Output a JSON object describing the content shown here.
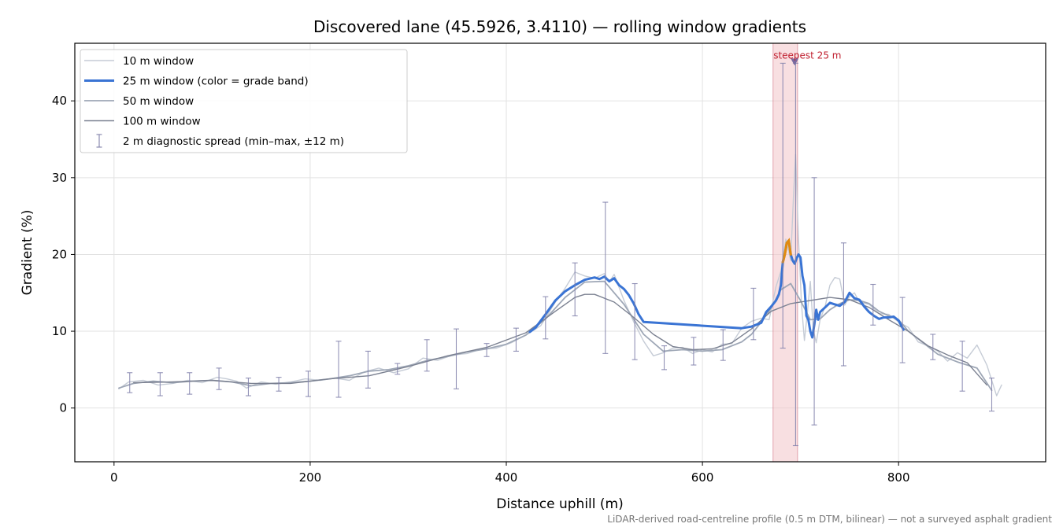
{
  "chart_data": {
    "type": "line",
    "title": "Discovered lane (45.5926, 3.4110) — rolling window gradients",
    "xlabel": "Distance uphill (m)",
    "ylabel": "Gradient (%)",
    "xlim": [
      -40,
      950
    ],
    "ylim": [
      -7,
      47.5
    ],
    "xticks": [
      0,
      200,
      400,
      600,
      800
    ],
    "yticks": [
      0,
      10,
      20,
      30,
      40
    ],
    "grid": true,
    "legend_position": "top-left",
    "footnote": "LiDAR-derived road-centreline profile (0.5 m DTM, bilinear) — not a surveyed asphalt gradient",
    "highlight": {
      "x_range": [
        672,
        697
      ],
      "label": "steepest 25 m",
      "marker": [
        694,
        45
      ],
      "color": "#e8a0a8"
    },
    "series": [
      {
        "name": "10 m window",
        "color": "#c6ccd6",
        "x": [
          5,
          15,
          30,
          45,
          60,
          75,
          90,
          105,
          115,
          125,
          135,
          150,
          165,
          180,
          195,
          210,
          225,
          240,
          255,
          270,
          285,
          300,
          315,
          330,
          345,
          360,
          375,
          390,
          405,
          420,
          435,
          450,
          460,
          470,
          480,
          490,
          500,
          505,
          510,
          520,
          530,
          540,
          550,
          560,
          570,
          580,
          590,
          600,
          610,
          620,
          630,
          640,
          650,
          660,
          668,
          675,
          680,
          685,
          690,
          693,
          695,
          698,
          701,
          704,
          707,
          710,
          713,
          716,
          720,
          725,
          730,
          735,
          740,
          745,
          750,
          755,
          760,
          770,
          780,
          790,
          800,
          810,
          820,
          830,
          840,
          850,
          860,
          870,
          880,
          890,
          900,
          905
        ],
        "y": [
          2.5,
          3.4,
          3.6,
          3.0,
          3.2,
          3.6,
          3.3,
          4.0,
          3.8,
          3.5,
          2.6,
          3.4,
          3.1,
          3.4,
          3.8,
          3.6,
          3.9,
          3.6,
          4.7,
          5.2,
          4.6,
          5.1,
          6.5,
          6.2,
          6.9,
          7.1,
          7.7,
          7.8,
          8.5,
          9.5,
          10.7,
          13.8,
          15.6,
          17.7,
          17.2,
          16.9,
          17.5,
          16.4,
          17.4,
          14.0,
          11.2,
          8.7,
          6.8,
          7.2,
          7.8,
          7.9,
          7.1,
          7.6,
          7.3,
          8.3,
          8.4,
          10.4,
          11.3,
          11.7,
          11.5,
          15.8,
          17.8,
          22.0,
          19.2,
          28.0,
          33.0,
          22.0,
          13.5,
          8.8,
          12.5,
          16.5,
          10.2,
          8.5,
          11.5,
          13.2,
          16.0,
          17.0,
          16.8,
          13.4,
          14.5,
          15.0,
          13.8,
          13.5,
          12.3,
          12.2,
          11.2,
          10.5,
          8.6,
          8.1,
          7.4,
          6.1,
          7.2,
          6.5,
          8.2,
          5.6,
          1.6,
          3.0
        ]
      },
      {
        "name": "25 m window (color = grade band)",
        "color": "#3a74d4",
        "peak_color": "#e08a10",
        "x": [
          424,
          430,
          440,
          450,
          460,
          470,
          480,
          490,
          495,
          500,
          505,
          510,
          515,
          520,
          525,
          530,
          535,
          540,
          640,
          650,
          660,
          665,
          670,
          675,
          678,
          680,
          682,
          684,
          686,
          688,
          690,
          692,
          694,
          696,
          698,
          700,
          702,
          704,
          706,
          708,
          710,
          712,
          714,
          716,
          718,
          720,
          725,
          730,
          735,
          740,
          745,
          750,
          755,
          760,
          765,
          770,
          775,
          780,
          785,
          790,
          795,
          800,
          805
        ],
        "y": [
          9.9,
          10.5,
          12.2,
          14.0,
          15.2,
          16.0,
          16.7,
          17.0,
          16.8,
          17.1,
          16.5,
          16.9,
          16.0,
          15.5,
          14.7,
          13.6,
          12.2,
          11.2,
          10.4,
          10.6,
          11.1,
          12.5,
          13.2,
          14.0,
          14.8,
          16.0,
          19.0,
          20.0,
          21.5,
          21.8,
          20.0,
          19.2,
          18.8,
          19.5,
          20.0,
          19.6,
          17.2,
          16.0,
          12.0,
          11.5,
          10.0,
          9.2,
          10.8,
          12.8,
          11.5,
          12.5,
          13.1,
          13.7,
          13.5,
          13.3,
          13.8,
          15.0,
          14.3,
          14.1,
          13.2,
          12.5,
          12.0,
          11.6,
          11.8,
          11.8,
          11.9,
          11.4,
          10.2
        ]
      },
      {
        "name": "50 m window",
        "color": "#9ea7b6",
        "x": [
          5,
          20,
          40,
          60,
          80,
          100,
          120,
          140,
          160,
          180,
          200,
          220,
          240,
          260,
          280,
          300,
          320,
          340,
          360,
          380,
          400,
          420,
          440,
          460,
          480,
          500,
          520,
          540,
          560,
          580,
          600,
          620,
          640,
          650,
          660,
          670,
          680,
          690,
          700,
          710,
          720,
          730,
          740,
          750,
          760,
          770,
          780,
          790,
          800,
          810,
          820,
          840,
          860,
          880,
          895
        ],
        "y": [
          2.6,
          3.2,
          3.5,
          3.3,
          3.5,
          3.6,
          3.4,
          2.9,
          3.2,
          3.3,
          3.5,
          3.8,
          4.2,
          4.8,
          5.0,
          5.5,
          6.2,
          6.7,
          7.3,
          7.7,
          8.3,
          9.5,
          11.6,
          14.4,
          16.4,
          16.5,
          13.5,
          9.6,
          7.4,
          7.6,
          7.4,
          7.6,
          8.6,
          9.6,
          11.2,
          13.0,
          15.4,
          16.2,
          14.0,
          11.5,
          11.6,
          12.8,
          13.6,
          14.1,
          14.0,
          13.6,
          12.6,
          12.0,
          11.5,
          10.0,
          9.0,
          7.0,
          6.0,
          5.2,
          2.3
        ]
      },
      {
        "name": "100 m window",
        "color": "#7b8191",
        "x": [
          20,
          60,
          100,
          140,
          180,
          220,
          260,
          300,
          340,
          380,
          420,
          450,
          470,
          480,
          490,
          510,
          530,
          550,
          570,
          590,
          610,
          630,
          650,
          670,
          690,
          710,
          730,
          750,
          770,
          790,
          810,
          830,
          850,
          870,
          890
        ],
        "y": [
          3.3,
          3.4,
          3.6,
          3.2,
          3.2,
          3.8,
          4.2,
          5.4,
          6.8,
          7.9,
          9.8,
          12.6,
          14.4,
          14.8,
          14.8,
          13.8,
          11.8,
          9.6,
          8.0,
          7.6,
          7.7,
          8.5,
          10.3,
          12.6,
          13.6,
          14.0,
          14.4,
          14.1,
          13.1,
          11.5,
          10.0,
          8.1,
          6.9,
          5.9,
          3.0
        ]
      }
    ],
    "error_bars": {
      "name": "2 m diagnostic spread (min–max, ±12 m)",
      "color": "#8080aa",
      "x": [
        16,
        47,
        77,
        107,
        137,
        168,
        198,
        229,
        259,
        289,
        319,
        349,
        380,
        410,
        440,
        470,
        501,
        531,
        561,
        591,
        621,
        652,
        682,
        695,
        714,
        744,
        774,
        804,
        835,
        865,
        895
      ],
      "low": [
        2.0,
        1.6,
        1.8,
        2.4,
        1.6,
        2.2,
        1.5,
        1.4,
        2.6,
        4.4,
        4.8,
        2.5,
        6.7,
        7.4,
        9.0,
        12.0,
        7.1,
        6.3,
        5.0,
        5.6,
        6.2,
        8.9,
        7.8,
        -4.9,
        -2.2,
        5.5,
        10.8,
        5.9,
        6.3,
        2.2,
        -0.4
      ],
      "high": [
        4.6,
        4.6,
        4.6,
        5.2,
        3.9,
        4.0,
        4.8,
        8.7,
        7.4,
        5.8,
        8.9,
        10.3,
        8.4,
        10.4,
        14.5,
        18.9,
        26.8,
        16.2,
        8.1,
        9.2,
        10.2,
        15.6,
        44.9,
        44.9,
        30.0,
        21.5,
        16.1,
        14.4,
        9.6,
        8.7,
        3.9
      ]
    }
  }
}
